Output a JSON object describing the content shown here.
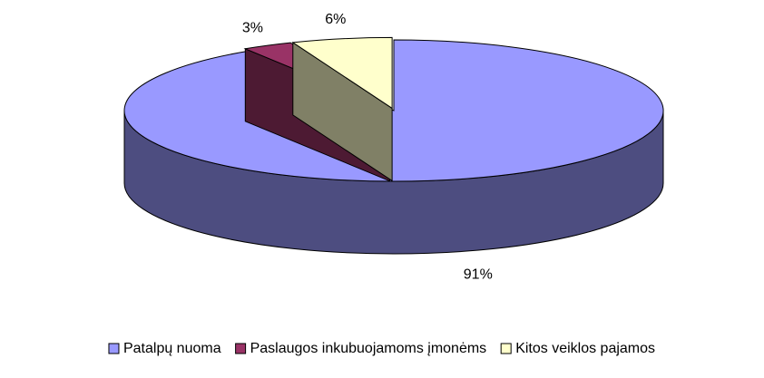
{
  "chart_data": {
    "type": "pie",
    "categories": [
      "Patalpų nuoma",
      "Paslaugos inkubuojamoms įmonėms",
      "Kitos veiklos pajamos"
    ],
    "values": [
      91,
      3,
      6
    ],
    "value_labels": [
      "91%",
      "3%",
      "6%"
    ],
    "colors": [
      "#9999ff",
      "#993366",
      "#ffffcc"
    ],
    "legend": "bottom"
  }
}
